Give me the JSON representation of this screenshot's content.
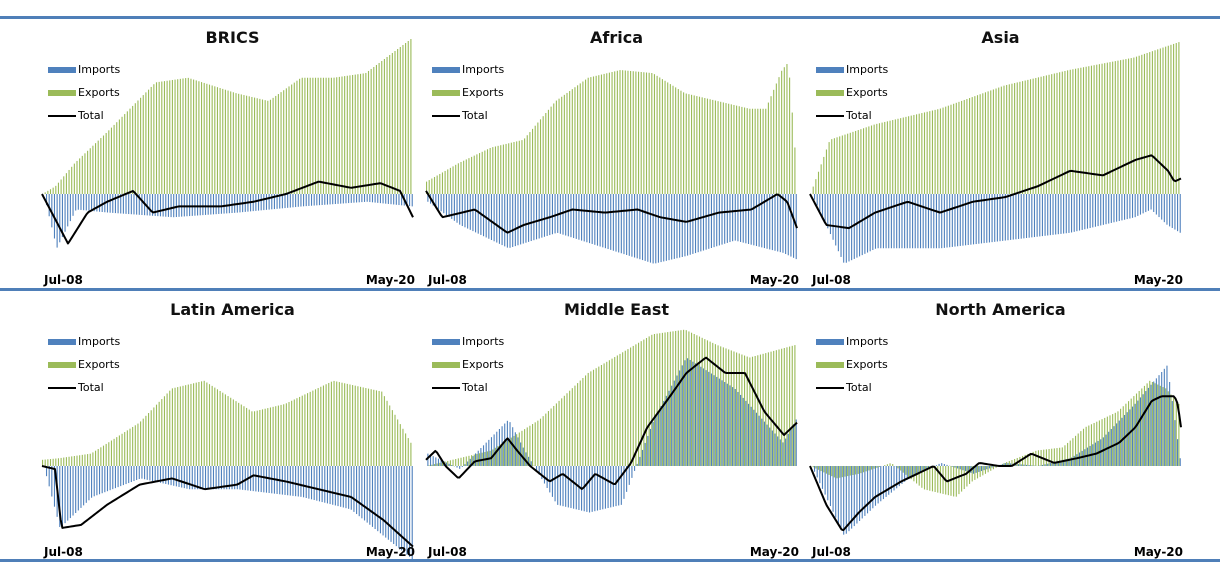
{
  "colors": {
    "imports": "#4f81bd",
    "exports": "#9bbb59",
    "total": "#000000",
    "rule": "#4f7fb8"
  },
  "legend": {
    "imports": "Imports",
    "exports": "Exports",
    "total": "Total"
  },
  "chart_data": [
    {
      "type": "bar",
      "title": "BRICS",
      "x_start": "Jul-08",
      "x_end": "May-20",
      "ylim": [
        -1,
        1
      ],
      "series": [
        {
          "name": "Imports",
          "anchors": [
            [
              0,
              0
            ],
            [
              4,
              -0.35
            ],
            [
              10,
              -0.1
            ],
            [
              20,
              -0.12
            ],
            [
              40,
              -0.15
            ],
            [
              60,
              -0.12
            ],
            [
              80,
              -0.08
            ],
            [
              100,
              -0.05
            ],
            [
              114,
              -0.08
            ]
          ]
        },
        {
          "name": "Exports",
          "anchors": [
            [
              0,
              0
            ],
            [
              4,
              0.05
            ],
            [
              10,
              0.2
            ],
            [
              20,
              0.4
            ],
            [
              35,
              0.72
            ],
            [
              45,
              0.75
            ],
            [
              60,
              0.65
            ],
            [
              70,
              0.6
            ],
            [
              80,
              0.75
            ],
            [
              90,
              0.75
            ],
            [
              100,
              0.78
            ],
            [
              114,
              1.0
            ]
          ]
        },
        {
          "name": "Total",
          "anchors": [
            [
              0,
              0
            ],
            [
              8,
              -0.32
            ],
            [
              14,
              -0.12
            ],
            [
              20,
              -0.05
            ],
            [
              28,
              0.02
            ],
            [
              34,
              -0.12
            ],
            [
              42,
              -0.08
            ],
            [
              55,
              -0.08
            ],
            [
              65,
              -0.05
            ],
            [
              75,
              0.0
            ],
            [
              85,
              0.08
            ],
            [
              95,
              0.04
            ],
            [
              104,
              0.07
            ],
            [
              110,
              0.02
            ],
            [
              114,
              -0.15
            ]
          ]
        }
      ]
    },
    {
      "type": "bar",
      "title": "Africa",
      "x_start": "Jul-08",
      "x_end": "May-20",
      "ylim": [
        -1,
        1
      ],
      "series": [
        {
          "name": "Imports",
          "anchors": [
            [
              0,
              -0.05
            ],
            [
              10,
              -0.2
            ],
            [
              25,
              -0.35
            ],
            [
              40,
              -0.25
            ],
            [
              55,
              -0.35
            ],
            [
              70,
              -0.45
            ],
            [
              80,
              -0.4
            ],
            [
              95,
              -0.3
            ],
            [
              110,
              -0.38
            ],
            [
              114,
              -0.42
            ]
          ]
        },
        {
          "name": "Exports",
          "anchors": [
            [
              0,
              0.08
            ],
            [
              10,
              0.2
            ],
            [
              20,
              0.3
            ],
            [
              30,
              0.35
            ],
            [
              40,
              0.6
            ],
            [
              50,
              0.75
            ],
            [
              60,
              0.8
            ],
            [
              70,
              0.78
            ],
            [
              80,
              0.65
            ],
            [
              90,
              0.6
            ],
            [
              100,
              0.55
            ],
            [
              105,
              0.55
            ],
            [
              110,
              0.8
            ],
            [
              112,
              0.85
            ],
            [
              114,
              0.3
            ]
          ]
        },
        {
          "name": "Total",
          "anchors": [
            [
              0,
              0.02
            ],
            [
              5,
              -0.15
            ],
            [
              15,
              -0.1
            ],
            [
              25,
              -0.25
            ],
            [
              30,
              -0.2
            ],
            [
              38,
              -0.15
            ],
            [
              45,
              -0.1
            ],
            [
              55,
              -0.12
            ],
            [
              65,
              -0.1
            ],
            [
              72,
              -0.15
            ],
            [
              80,
              -0.18
            ],
            [
              90,
              -0.12
            ],
            [
              100,
              -0.1
            ],
            [
              108,
              0.0
            ],
            [
              111,
              -0.05
            ],
            [
              114,
              -0.22
            ]
          ]
        }
      ]
    },
    {
      "type": "bar",
      "title": "Asia",
      "x_start": "Jul-08",
      "x_end": "May-20",
      "ylim": [
        -1,
        1
      ],
      "series": [
        {
          "name": "Imports",
          "anchors": [
            [
              0,
              0
            ],
            [
              10,
              -0.45
            ],
            [
              20,
              -0.35
            ],
            [
              40,
              -0.35
            ],
            [
              60,
              -0.3
            ],
            [
              80,
              -0.25
            ],
            [
              100,
              -0.15
            ],
            [
              105,
              -0.1
            ],
            [
              110,
              -0.2
            ],
            [
              114,
              -0.25
            ]
          ]
        },
        {
          "name": "Exports",
          "anchors": [
            [
              0,
              0
            ],
            [
              6,
              0.35
            ],
            [
              20,
              0.45
            ],
            [
              40,
              0.55
            ],
            [
              60,
              0.7
            ],
            [
              80,
              0.8
            ],
            [
              100,
              0.88
            ],
            [
              114,
              0.98
            ]
          ]
        },
        {
          "name": "Total",
          "anchors": [
            [
              0,
              0
            ],
            [
              5,
              -0.2
            ],
            [
              12,
              -0.22
            ],
            [
              20,
              -0.12
            ],
            [
              30,
              -0.05
            ],
            [
              40,
              -0.12
            ],
            [
              50,
              -0.05
            ],
            [
              60,
              -0.02
            ],
            [
              70,
              0.05
            ],
            [
              80,
              0.15
            ],
            [
              90,
              0.12
            ],
            [
              100,
              0.22
            ],
            [
              105,
              0.25
            ],
            [
              110,
              0.15
            ],
            [
              112,
              0.08
            ],
            [
              114,
              0.1
            ]
          ]
        }
      ]
    },
    {
      "type": "bar",
      "title": "Latin America",
      "x_start": "Jul-08",
      "x_end": "May-20",
      "ylim": [
        -1,
        1
      ],
      "series": [
        {
          "name": "Imports",
          "anchors": [
            [
              0,
              0
            ],
            [
              5,
              -0.4
            ],
            [
              15,
              -0.2
            ],
            [
              30,
              -0.08
            ],
            [
              45,
              -0.15
            ],
            [
              60,
              -0.15
            ],
            [
              80,
              -0.2
            ],
            [
              95,
              -0.28
            ],
            [
              114,
              -0.6
            ]
          ]
        },
        {
          "name": "Exports",
          "anchors": [
            [
              0,
              0.04
            ],
            [
              5,
              0.05
            ],
            [
              15,
              0.08
            ],
            [
              30,
              0.28
            ],
            [
              40,
              0.5
            ],
            [
              50,
              0.55
            ],
            [
              65,
              0.35
            ],
            [
              75,
              0.4
            ],
            [
              90,
              0.55
            ],
            [
              105,
              0.48
            ],
            [
              114,
              0.15
            ]
          ]
        },
        {
          "name": "Total",
          "anchors": [
            [
              0,
              0
            ],
            [
              4,
              -0.02
            ],
            [
              6,
              -0.4
            ],
            [
              12,
              -0.38
            ],
            [
              20,
              -0.25
            ],
            [
              30,
              -0.12
            ],
            [
              40,
              -0.08
            ],
            [
              50,
              -0.15
            ],
            [
              60,
              -0.12
            ],
            [
              65,
              -0.06
            ],
            [
              75,
              -0.1
            ],
            [
              85,
              -0.15
            ],
            [
              95,
              -0.2
            ],
            [
              105,
              -0.35
            ],
            [
              114,
              -0.52
            ]
          ]
        }
      ]
    },
    {
      "type": "bar",
      "title": "Middle East",
      "x_start": "Jul-08",
      "x_end": "May-20",
      "ylim": [
        -1,
        1
      ],
      "series": [
        {
          "name": "Imports",
          "anchors": [
            [
              0,
              0.08
            ],
            [
              10,
              -0.02
            ],
            [
              18,
              0.15
            ],
            [
              25,
              0.3
            ],
            [
              30,
              0.1
            ],
            [
              40,
              -0.25
            ],
            [
              50,
              -0.3
            ],
            [
              60,
              -0.25
            ],
            [
              70,
              0.3
            ],
            [
              80,
              0.7
            ],
            [
              95,
              0.5
            ],
            [
              110,
              0.15
            ],
            [
              114,
              0.3
            ]
          ]
        },
        {
          "name": "Exports",
          "anchors": [
            [
              0,
              0
            ],
            [
              10,
              0.05
            ],
            [
              20,
              0.1
            ],
            [
              35,
              0.3
            ],
            [
              50,
              0.6
            ],
            [
              70,
              0.85
            ],
            [
              80,
              0.88
            ],
            [
              90,
              0.78
            ],
            [
              100,
              0.7
            ],
            [
              114,
              0.78
            ]
          ]
        },
        {
          "name": "Total",
          "anchors": [
            [
              0,
              0.04
            ],
            [
              3,
              0.1
            ],
            [
              6,
              0.0
            ],
            [
              10,
              -0.08
            ],
            [
              15,
              0.03
            ],
            [
              20,
              0.05
            ],
            [
              25,
              0.18
            ],
            [
              28,
              0.1
            ],
            [
              32,
              0.0
            ],
            [
              38,
              -0.1
            ],
            [
              42,
              -0.05
            ],
            [
              48,
              -0.15
            ],
            [
              52,
              -0.05
            ],
            [
              58,
              -0.12
            ],
            [
              63,
              0.02
            ],
            [
              68,
              0.25
            ],
            [
              75,
              0.45
            ],
            [
              80,
              0.6
            ],
            [
              86,
              0.7
            ],
            [
              92,
              0.6
            ],
            [
              98,
              0.6
            ],
            [
              104,
              0.35
            ],
            [
              110,
              0.2
            ],
            [
              114,
              0.28
            ]
          ]
        }
      ]
    },
    {
      "type": "bar",
      "title": "North America",
      "x_start": "Jul-08",
      "x_end": "May-20",
      "ylim": [
        -1,
        1
      ],
      "series": [
        {
          "name": "Imports",
          "anchors": [
            [
              0,
              0
            ],
            [
              10,
              -0.45
            ],
            [
              20,
              -0.25
            ],
            [
              30,
              -0.08
            ],
            [
              40,
              0.02
            ],
            [
              50,
              -0.05
            ],
            [
              60,
              0.02
            ],
            [
              70,
              0.0
            ],
            [
              80,
              0.05
            ],
            [
              90,
              0.18
            ],
            [
              100,
              0.4
            ],
            [
              110,
              0.65
            ],
            [
              114,
              0.05
            ]
          ]
        },
        {
          "name": "Exports",
          "anchors": [
            [
              0,
              0
            ],
            [
              8,
              -0.08
            ],
            [
              15,
              -0.05
            ],
            [
              25,
              0.02
            ],
            [
              35,
              -0.15
            ],
            [
              45,
              -0.2
            ],
            [
              50,
              -0.1
            ],
            [
              60,
              0.02
            ],
            [
              70,
              0.1
            ],
            [
              78,
              0.12
            ],
            [
              85,
              0.25
            ],
            [
              95,
              0.35
            ],
            [
              100,
              0.45
            ],
            [
              105,
              0.55
            ],
            [
              110,
              0.5
            ],
            [
              114,
              0.4
            ]
          ]
        },
        {
          "name": "Total",
          "anchors": [
            [
              0,
              0
            ],
            [
              5,
              -0.25
            ],
            [
              10,
              -0.42
            ],
            [
              15,
              -0.3
            ],
            [
              20,
              -0.2
            ],
            [
              28,
              -0.1
            ],
            [
              33,
              -0.05
            ],
            [
              38,
              0.0
            ],
            [
              42,
              -0.1
            ],
            [
              48,
              -0.05
            ],
            [
              52,
              0.02
            ],
            [
              58,
              0.0
            ],
            [
              62,
              0.0
            ],
            [
              68,
              0.08
            ],
            [
              75,
              0.02
            ],
            [
              82,
              0.05
            ],
            [
              88,
              0.08
            ],
            [
              95,
              0.15
            ],
            [
              100,
              0.25
            ],
            [
              105,
              0.42
            ],
            [
              108,
              0.45
            ],
            [
              112,
              0.45
            ],
            [
              113,
              0.4
            ],
            [
              114,
              0.25
            ]
          ]
        }
      ]
    }
  ]
}
